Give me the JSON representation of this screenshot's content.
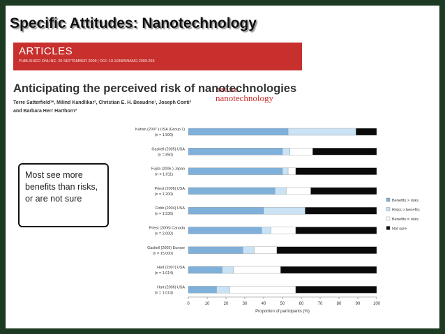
{
  "slide": {
    "title": "Specific Attitudes: Nanotechnology",
    "callout": "Most see more benefits than risks, or are not sure"
  },
  "article_header": {
    "section": "ARTICLES",
    "published": "PUBLISHED ONLINE: 20 SEPTEMBER 2009 | DOI: 10.1038/NNANO.2009.265",
    "journal_line1": "nature",
    "journal_line2": "nanotechnology",
    "title": "Anticipating the perceived risk of nanotechnologies",
    "authors_line1": "Terre Satterfield¹*, Milind Kandlikar², Christian E. H. Beaudrie¹, Joseph Conti³",
    "authors_line2": "and Barbara Herr Harthorn³"
  },
  "colors": {
    "background": "#1d3a22",
    "header_band": "#c7302d",
    "benefits_gt_risks": "#7fb0da",
    "risks_gt_benefits": "#c9e2f4",
    "benefits_eq_risks": "#ffffff",
    "not_sure": "#0a0a0a"
  },
  "chart_data": {
    "type": "bar",
    "orientation": "horizontal",
    "stacked": true,
    "categories": [
      "Kahan (2007 ) USA (Group 1)\n(n = 1,500)",
      "Gaskell (2005) USA\n(n = 850)",
      "Fujita (2006 ) Japan\n(n = 1,011)",
      "Priest (2006) USA\n(n = 1,200)",
      "Cobb (2004) USA\n(n = 1,536)",
      "Priest (2006) Canada\n(n = 2,000)",
      "Gaskell (2005) Europe\n(n = 15,000)",
      "Hart (2007) USA\n(n = 1,014)",
      "Hart (2006) USA\n(n = 1,014)"
    ],
    "series": [
      {
        "name": "Benefits > risks",
        "values": [
          53,
          50,
          50,
          46,
          40,
          39,
          29,
          18,
          15
        ]
      },
      {
        "name": "Risks > benefits",
        "values": [
          36,
          4,
          3,
          6,
          22,
          5,
          6,
          6,
          7
        ]
      },
      {
        "name": "Benefits = risks",
        "values": [
          0,
          12,
          4,
          13,
          0,
          13,
          12,
          25,
          35
        ]
      },
      {
        "name": "Not sure",
        "values": [
          11,
          34,
          43,
          35,
          38,
          43,
          53,
          51,
          43
        ]
      }
    ],
    "x_ticks": [
      0,
      10,
      20,
      30,
      40,
      50,
      60,
      70,
      80,
      90,
      100
    ],
    "xlim": [
      0,
      100
    ],
    "xlabel": "Proportion of participants (%)",
    "legend_position": "right"
  }
}
